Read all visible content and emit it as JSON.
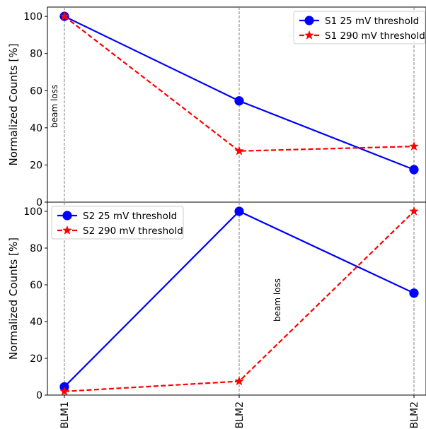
{
  "chart_data": [
    {
      "type": "line",
      "categories": [
        "BLM1",
        "BLM2",
        "BLM2"
      ],
      "ylabel": "Normalized Counts [%]",
      "ylim": [
        0,
        105
      ],
      "yticks": [
        0,
        20,
        40,
        60,
        80,
        100
      ],
      "grid": false,
      "legend_position": "top-right",
      "annotations": [
        {
          "text": "beam loss",
          "x_index": 0,
          "y": 40
        }
      ],
      "series": [
        {
          "name": "S1 25 mV threshold",
          "color": "#0000ff",
          "linestyle": "solid",
          "marker": "circle",
          "values": [
            100,
            54.5,
            17.5
          ]
        },
        {
          "name": "S1 290 mV threshold",
          "color": "#ff0000",
          "linestyle": "dashed",
          "marker": "star",
          "values": [
            100,
            27.5,
            30
          ]
        }
      ]
    },
    {
      "type": "line",
      "categories": [
        "BLM1",
        "BLM2",
        "BLM2"
      ],
      "ylabel": "Normalized Counts [%]",
      "ylim": [
        0,
        105
      ],
      "yticks": [
        0,
        20,
        40,
        60,
        80,
        100
      ],
      "grid": false,
      "legend_position": "top-left",
      "annotations": [
        {
          "text": "beam loss",
          "x_index": 1,
          "y": 40
        }
      ],
      "series": [
        {
          "name": "S2 25 mV threshold",
          "color": "#0000ff",
          "linestyle": "solid",
          "marker": "circle",
          "values": [
            4.5,
            100,
            55.5
          ]
        },
        {
          "name": "S2 290 mV threshold",
          "color": "#ff0000",
          "linestyle": "dashed",
          "marker": "star",
          "values": [
            2,
            7.5,
            100
          ]
        }
      ]
    }
  ]
}
